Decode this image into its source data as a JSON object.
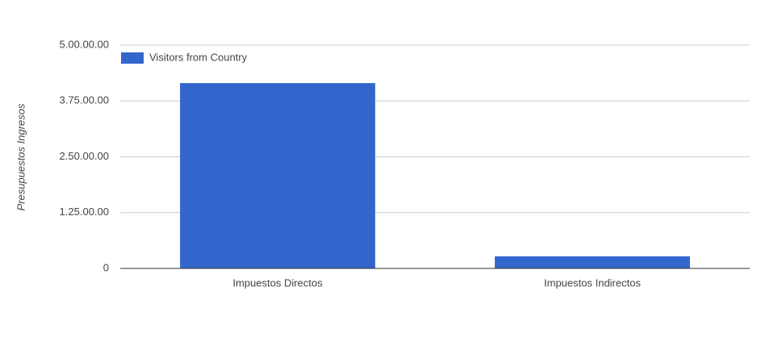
{
  "chart_data": {
    "type": "bar",
    "y_label": "Presupuestos Ingresos",
    "categories": [
      "Impuestos Directos",
      "Impuestos Indirectos"
    ],
    "series": [
      {
        "name": "Visitors from Country",
        "color": "#3366cc",
        "values": [
          4150000,
          270000
        ]
      }
    ],
    "ylim": [
      0,
      5000000
    ],
    "yticks": [
      0,
      {
        "value": 1250000,
        "label": "1.25.00.00"
      },
      {
        "value": 2500000,
        "label": "2.50.00.00"
      },
      {
        "value": 3750000,
        "label": "3.75.00.00"
      },
      {
        "value": 5000000,
        "label": "5.00.00.00"
      }
    ],
    "grid": true,
    "legend": "top-left"
  }
}
